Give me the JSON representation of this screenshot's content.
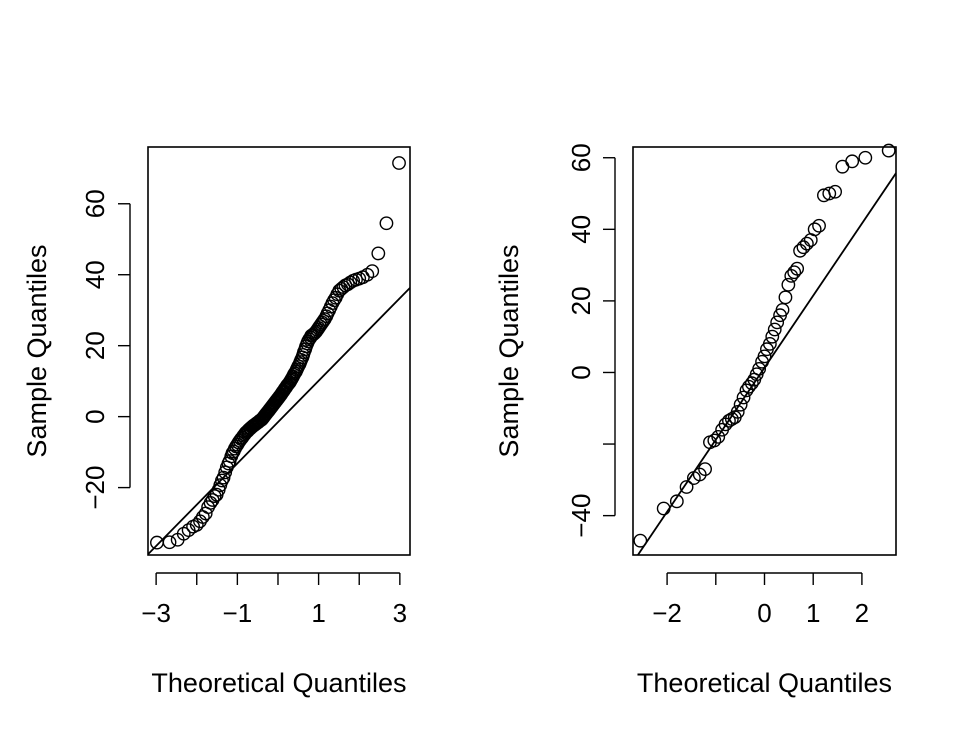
{
  "chart_data": [
    {
      "type": "scatter",
      "xlabel": "Theoretical Quantiles",
      "ylabel": "Sample Quantiles",
      "xlim": [
        -3.2,
        3.25
      ],
      "ylim": [
        -39,
        76
      ],
      "x_ticks": [
        -3,
        -2,
        -1,
        0,
        1,
        2,
        3
      ],
      "x_tick_labels": [
        "−3",
        "",
        "−1",
        "",
        "1",
        "",
        "3"
      ],
      "y_ticks": [
        -20,
        0,
        20,
        40,
        60
      ],
      "y_tick_labels": [
        "−20",
        "0",
        "20",
        "40",
        "60"
      ],
      "ref_line": {
        "x": [
          -3.2,
          3.25
        ],
        "y": [
          -38.8,
          36.3
        ]
      },
      "series": [
        {
          "x": [
            -2.98,
            -2.67,
            -2.47,
            -2.32,
            -2.2,
            -2.09,
            -2.0,
            -1.92,
            -1.85,
            -1.78,
            -1.72,
            -1.66,
            -1.61,
            -1.56,
            -1.51,
            -1.46,
            -1.42,
            -1.38,
            -1.34,
            -1.3,
            -1.26,
            -1.22,
            -1.19,
            -1.15,
            -1.12,
            -1.09,
            -1.06,
            -1.03,
            -1.0,
            -0.97,
            -0.94,
            -0.91,
            -0.88,
            -0.85,
            -0.82,
            -0.8,
            -0.77,
            -0.74,
            -0.72,
            -0.69,
            -0.67,
            -0.64,
            -0.62,
            -0.6,
            -0.57,
            -0.55,
            -0.53,
            -0.5,
            -0.48,
            -0.46,
            -0.44,
            -0.41,
            -0.39,
            -0.37,
            -0.35,
            -0.33,
            -0.31,
            -0.29,
            -0.27,
            -0.24,
            -0.22,
            -0.2,
            -0.18,
            -0.16,
            -0.14,
            -0.12,
            -0.1,
            -0.08,
            -0.06,
            -0.04,
            -0.02,
            0.0,
            0.02,
            0.04,
            0.06,
            0.08,
            0.1,
            0.12,
            0.14,
            0.16,
            0.18,
            0.2,
            0.22,
            0.24,
            0.27,
            0.29,
            0.31,
            0.33,
            0.35,
            0.37,
            0.39,
            0.41,
            0.44,
            0.46,
            0.48,
            0.5,
            0.53,
            0.55,
            0.57,
            0.6,
            0.62,
            0.64,
            0.67,
            0.69,
            0.72,
            0.74,
            0.77,
            0.8,
            0.82,
            0.85,
            0.88,
            0.91,
            0.94,
            0.97,
            1.0,
            1.03,
            1.06,
            1.09,
            1.12,
            1.15,
            1.19,
            1.22,
            1.26,
            1.3,
            1.34,
            1.38,
            1.42,
            1.46,
            1.51,
            1.56,
            1.61,
            1.66,
            1.72,
            1.78,
            1.85,
            1.92,
            2.0,
            2.09,
            2.2,
            2.32,
            2.47,
            2.67,
            2.98
          ],
          "y": [
            -35.5,
            -35.4,
            -34.7,
            -33.0,
            -32.0,
            -31.0,
            -30.5,
            -29.5,
            -28.3,
            -27.3,
            -25.5,
            -24.3,
            -23.5,
            -22.4,
            -22.0,
            -20.6,
            -19.3,
            -18.0,
            -17.2,
            -15.7,
            -14.3,
            -13.2,
            -12.5,
            -11.2,
            -10.3,
            -9.8,
            -9.0,
            -8.4,
            -7.9,
            -7.3,
            -6.8,
            -6.3,
            -5.9,
            -5.4,
            -5.0,
            -4.6,
            -4.3,
            -4.0,
            -3.7,
            -3.4,
            -3.2,
            -2.9,
            -2.7,
            -2.5,
            -2.3,
            -2.1,
            -1.9,
            -1.7,
            -1.5,
            -1.3,
            -1.1,
            -0.9,
            -0.7,
            -0.4,
            -0.1,
            0.2,
            0.5,
            0.8,
            1.1,
            1.5,
            1.8,
            2.1,
            2.4,
            2.7,
            3.0,
            3.3,
            3.6,
            3.9,
            4.2,
            4.5,
            4.8,
            5.1,
            5.4,
            5.7,
            6.0,
            6.3,
            6.7,
            7.0,
            7.3,
            7.7,
            8.0,
            8.3,
            8.7,
            9.0,
            9.4,
            9.7,
            10.1,
            10.5,
            10.9,
            11.3,
            11.8,
            12.2,
            12.7,
            13.2,
            13.7,
            14.2,
            14.8,
            15.4,
            16.0,
            16.7,
            17.4,
            18.2,
            19.0,
            19.8,
            20.6,
            21.2,
            21.8,
            22.3,
            22.8,
            23.0,
            23.3,
            23.6,
            24.0,
            24.5,
            25.0,
            25.5,
            26.0,
            26.5,
            27.0,
            27.5,
            28.3,
            29.1,
            30.0,
            31.0,
            32.0,
            32.8,
            33.5,
            34.5,
            35.5,
            36.0,
            36.5,
            37.0,
            37.3,
            37.8,
            38.3,
            38.6,
            38.9,
            39.3,
            40.0,
            41.0,
            46.0,
            54.5,
            71.5
          ]
        }
      ]
    },
    {
      "type": "scatter",
      "xlabel": "Theoretical Quantiles",
      "ylabel": "Sample Quantiles",
      "xlim": [
        -2.7,
        2.7
      ],
      "ylim": [
        -51,
        63
      ],
      "x_ticks": [
        -2,
        -1,
        0,
        1,
        2
      ],
      "x_tick_labels": [
        "−2",
        "",
        "0",
        "1",
        "2"
      ],
      "y_ticks": [
        -40,
        -20,
        0,
        20,
        40,
        60
      ],
      "y_tick_labels": [
        "−40",
        "",
        "0",
        "20",
        "40",
        "60"
      ],
      "ref_line": {
        "x": [
          -2.6,
          2.7
        ],
        "y": [
          -51.0,
          55.7
        ]
      },
      "series": [
        {
          "x": [
            -2.55,
            -2.07,
            -1.8,
            -1.6,
            -1.45,
            -1.33,
            -1.22,
            -1.12,
            -1.03,
            -0.95,
            -0.87,
            -0.8,
            -0.73,
            -0.67,
            -0.61,
            -0.55,
            -0.49,
            -0.43,
            -0.37,
            -0.32,
            -0.26,
            -0.21,
            -0.16,
            -0.11,
            -0.05,
            0.0,
            0.05,
            0.11,
            0.16,
            0.21,
            0.26,
            0.32,
            0.37,
            0.43,
            0.49,
            0.55,
            0.61,
            0.67,
            0.73,
            0.8,
            0.87,
            0.95,
            1.03,
            1.12,
            1.22,
            1.33,
            1.45,
            1.6,
            1.8,
            2.07,
            2.55
          ],
          "y": [
            -47.0,
            -38.0,
            -36.0,
            -32.0,
            -29.5,
            -28.5,
            -27.0,
            -19.5,
            -19.0,
            -18.0,
            -16.0,
            -14.5,
            -13.5,
            -13.0,
            -12.5,
            -11.0,
            -9.0,
            -7.0,
            -5.0,
            -4.0,
            -3.0,
            -2.0,
            -0.5,
            1.0,
            3.0,
            4.5,
            6.5,
            8.0,
            10.0,
            12.0,
            14.0,
            16.0,
            17.5,
            21.0,
            24.5,
            27.0,
            28.0,
            29.0,
            34.0,
            35.0,
            36.0,
            37.0,
            40.0,
            41.0,
            49.5,
            50.0,
            50.5,
            57.5,
            59.0,
            60.0,
            62.0
          ]
        }
      ]
    }
  ]
}
